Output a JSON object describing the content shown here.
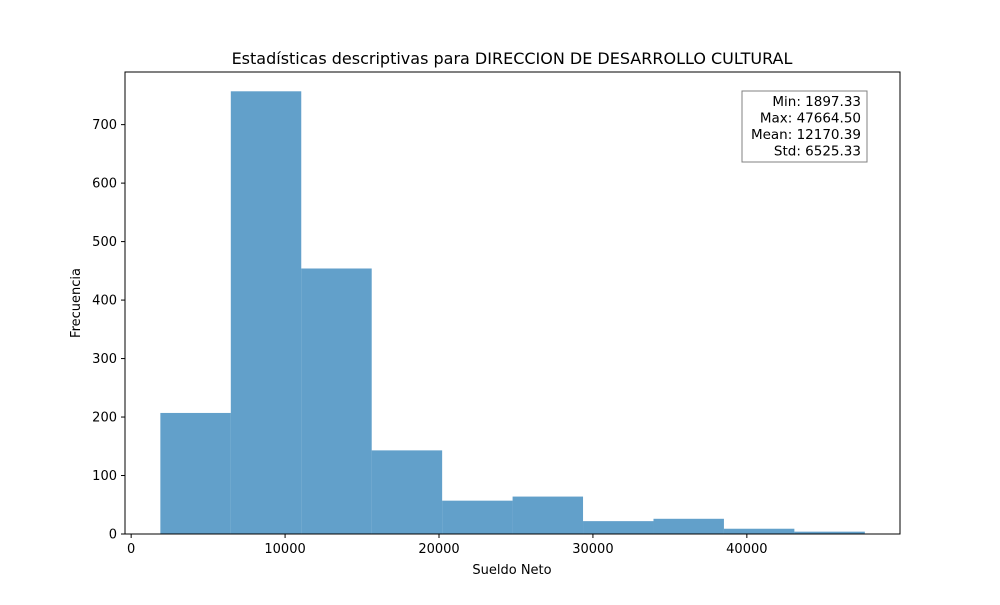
{
  "chart_data": {
    "type": "bar",
    "subtype": "histogram",
    "title": "Estadísticas descriptivas para DIRECCION DE DESARROLLO CULTURAL",
    "xlabel": "Sueldo Neto",
    "ylabel": "Frecuencia",
    "xlim": [
      -400,
      49950
    ],
    "ylim": [
      0,
      790
    ],
    "xticks": [
      0,
      10000,
      20000,
      30000,
      40000
    ],
    "yticks": [
      0,
      100,
      200,
      300,
      400,
      500,
      600,
      700
    ],
    "bin_edges": [
      1897.33,
      6474.05,
      11050.77,
      15627.48,
      20204.2,
      24780.92,
      29357.63,
      33934.35,
      38511.07,
      43087.78,
      47664.5
    ],
    "counts": [
      207,
      757,
      454,
      143,
      57,
      64,
      22,
      26,
      9,
      4
    ],
    "bar_color": "#1f77b4",
    "bar_opacity": 0.7,
    "grid": false,
    "stats_box": {
      "placement": "top-right",
      "lines": [
        "Min: 1897.33",
        "Max: 47664.50",
        "Mean: 12170.39",
        "Std: 6525.33"
      ]
    }
  }
}
